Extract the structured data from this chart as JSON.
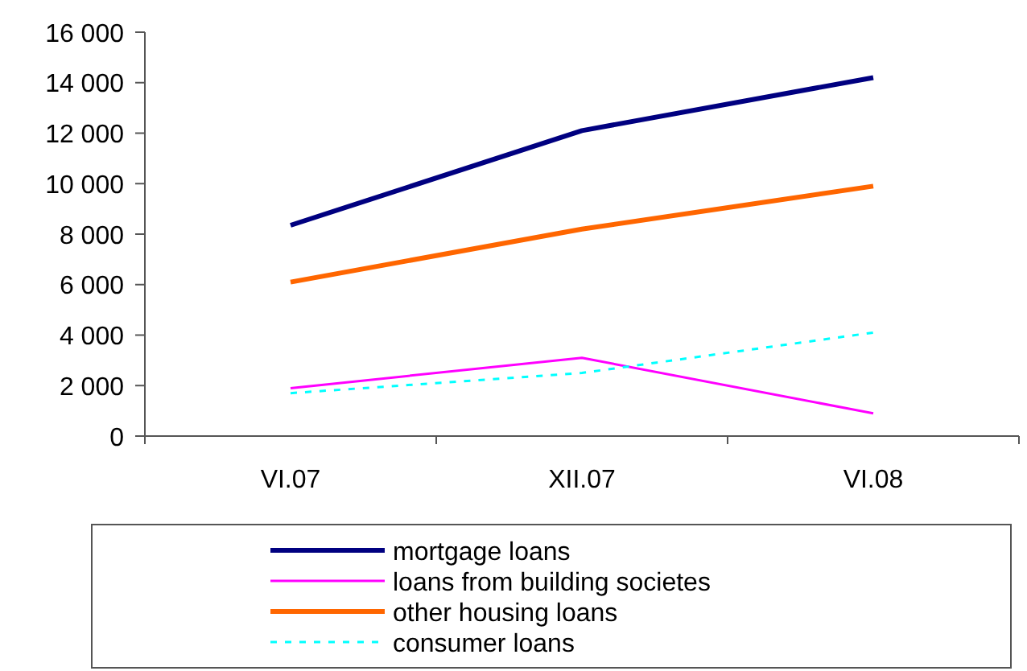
{
  "chart_data": {
    "type": "line",
    "categories": [
      "VI.07",
      "XII.07",
      "VI.08"
    ],
    "series": [
      {
        "name": "mortgage loans",
        "color": "#000080",
        "values": [
          8350,
          12100,
          14200
        ]
      },
      {
        "name": "loans from building societes",
        "color": "#ff00ff",
        "values": [
          1900,
          3100,
          900
        ]
      },
      {
        "name": "other housing loans",
        "color": "#ff6600",
        "values": [
          6100,
          8200,
          9900
        ]
      },
      {
        "name": "consumer loans",
        "color": "#00ffff",
        "values": [
          1700,
          2500,
          4100
        ],
        "line_style": "dashed"
      }
    ],
    "ylim": [
      0,
      16000
    ],
    "yticks": [
      0,
      {
        "value": 2000,
        "label": "2 000"
      },
      {
        "value": 4000,
        "label": "4 000"
      },
      {
        "value": 6000,
        "label": "6 000"
      },
      {
        "value": 8000,
        "label": "8 000"
      },
      {
        "value": 10000,
        "label": "10 000"
      },
      {
        "value": 12000,
        "label": "12 000"
      },
      {
        "value": 14000,
        "label": "14 000"
      },
      {
        "value": 16000,
        "label": "16 000"
      }
    ],
    "legend": "bottom",
    "grid": false,
    "marker": "none"
  }
}
